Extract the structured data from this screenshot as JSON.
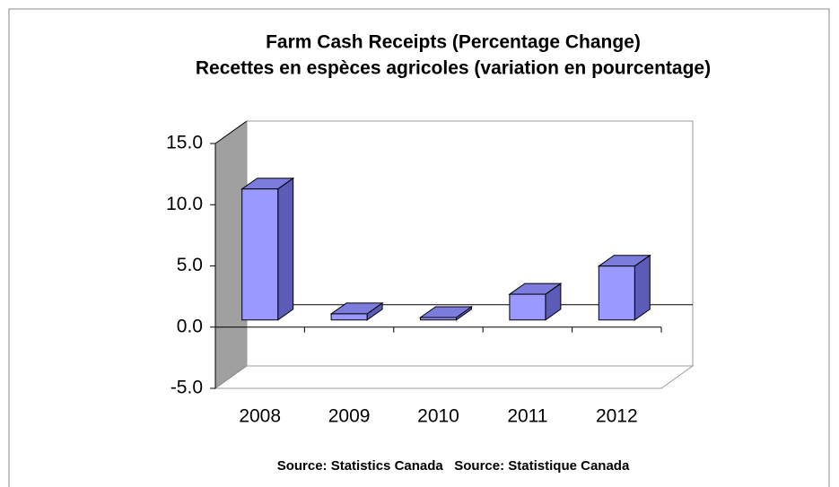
{
  "chart_data": {
    "type": "bar3d",
    "title": "Farm Cash Receipts (Percentage Change)",
    "subtitle": "Recettes en espèces agricoles (variation en pourcentage)",
    "categories": [
      "2008",
      "2009",
      "2010",
      "2011",
      "2012"
    ],
    "values": [
      10.7,
      0.5,
      0.2,
      2.1,
      4.4
    ],
    "color": "#9999ff",
    "ylim": [
      -5,
      15
    ],
    "yticks": [
      {
        "value": -5,
        "label": "-5.0"
      },
      {
        "value": 0,
        "label": "0.0"
      },
      {
        "value": 5,
        "label": "5.0"
      },
      {
        "value": 10,
        "label": "10.0"
      },
      {
        "value": 15,
        "label": "15.0"
      }
    ],
    "source": "Source: Statistics Canada   Source: Statistique Canada"
  }
}
